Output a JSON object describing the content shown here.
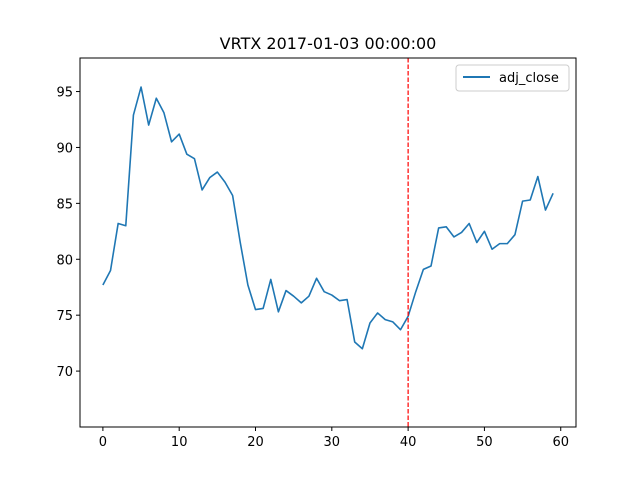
{
  "chart_data": {
    "type": "line",
    "title": "VRTX 2017-01-03 00:00:00",
    "xlabel": "",
    "ylabel": "",
    "xlim": [
      -3,
      62
    ],
    "ylim": [
      65,
      98
    ],
    "x_ticks": [
      0,
      10,
      20,
      30,
      40,
      50,
      60
    ],
    "y_ticks": [
      70,
      75,
      80,
      85,
      90,
      95
    ],
    "grid": false,
    "legend_position": "top-right",
    "series": [
      {
        "name": "adj_close",
        "color": "#1f77b4",
        "values": [
          77.7,
          79.0,
          83.2,
          83.0,
          92.9,
          95.4,
          92.0,
          94.4,
          93.1,
          90.5,
          91.2,
          89.4,
          89.0,
          86.2,
          87.3,
          87.8,
          86.9,
          85.7,
          81.5,
          77.7,
          75.5,
          75.6,
          78.2,
          75.3,
          77.2,
          76.7,
          76.1,
          76.7,
          78.3,
          77.1,
          76.8,
          76.3,
          76.4,
          72.6,
          72.0,
          74.3,
          75.2,
          74.6,
          74.4,
          73.7,
          74.9,
          77.1,
          79.1,
          79.4,
          82.8,
          82.9,
          82.0,
          82.4,
          83.2,
          81.5,
          82.5,
          80.9,
          81.4,
          81.4,
          82.2,
          85.2,
          85.3,
          87.4,
          84.4,
          85.9
        ]
      }
    ],
    "annotations": [
      {
        "type": "vline",
        "x": 40,
        "color": "#ff0000",
        "style": "dashed"
      }
    ]
  }
}
